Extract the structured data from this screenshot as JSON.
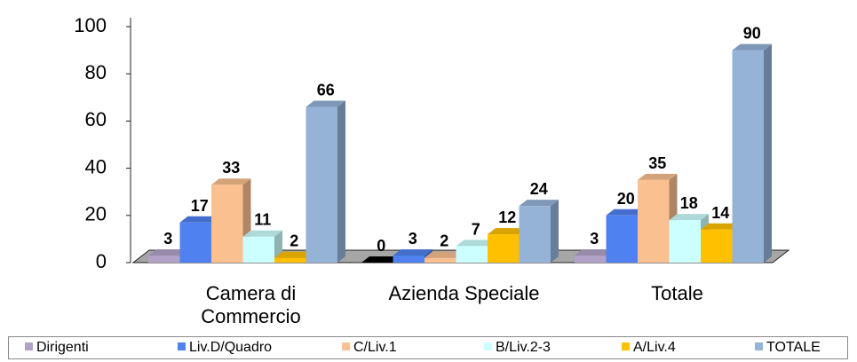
{
  "chart_data": {
    "type": "bar3d",
    "categories": [
      "Camera di Commercio",
      "Azienda Speciale",
      "Totale"
    ],
    "series": [
      {
        "name": "Dirigenti",
        "color": "#b3a2c7",
        "values": [
          3,
          0,
          3
        ]
      },
      {
        "name": "Liv.D/Quadro",
        "color": "#4f81f0",
        "values": [
          17,
          3,
          20
        ]
      },
      {
        "name": "C/Liv.1",
        "color": "#fac090",
        "values": [
          33,
          2,
          35
        ]
      },
      {
        "name": "B/Liv.2-3",
        "color": "#ccffff",
        "values": [
          11,
          7,
          18
        ]
      },
      {
        "name": "A/Liv.4",
        "color": "#ffc000",
        "values": [
          2,
          12,
          14
        ]
      },
      {
        "name": "TOTALE",
        "color": "#95b3d7",
        "values": [
          66,
          24,
          90
        ]
      }
    ],
    "ylim": [
      0,
      100
    ],
    "yticks": [
      0,
      20,
      40,
      60,
      80,
      100
    ],
    "legend": "bottom"
  }
}
